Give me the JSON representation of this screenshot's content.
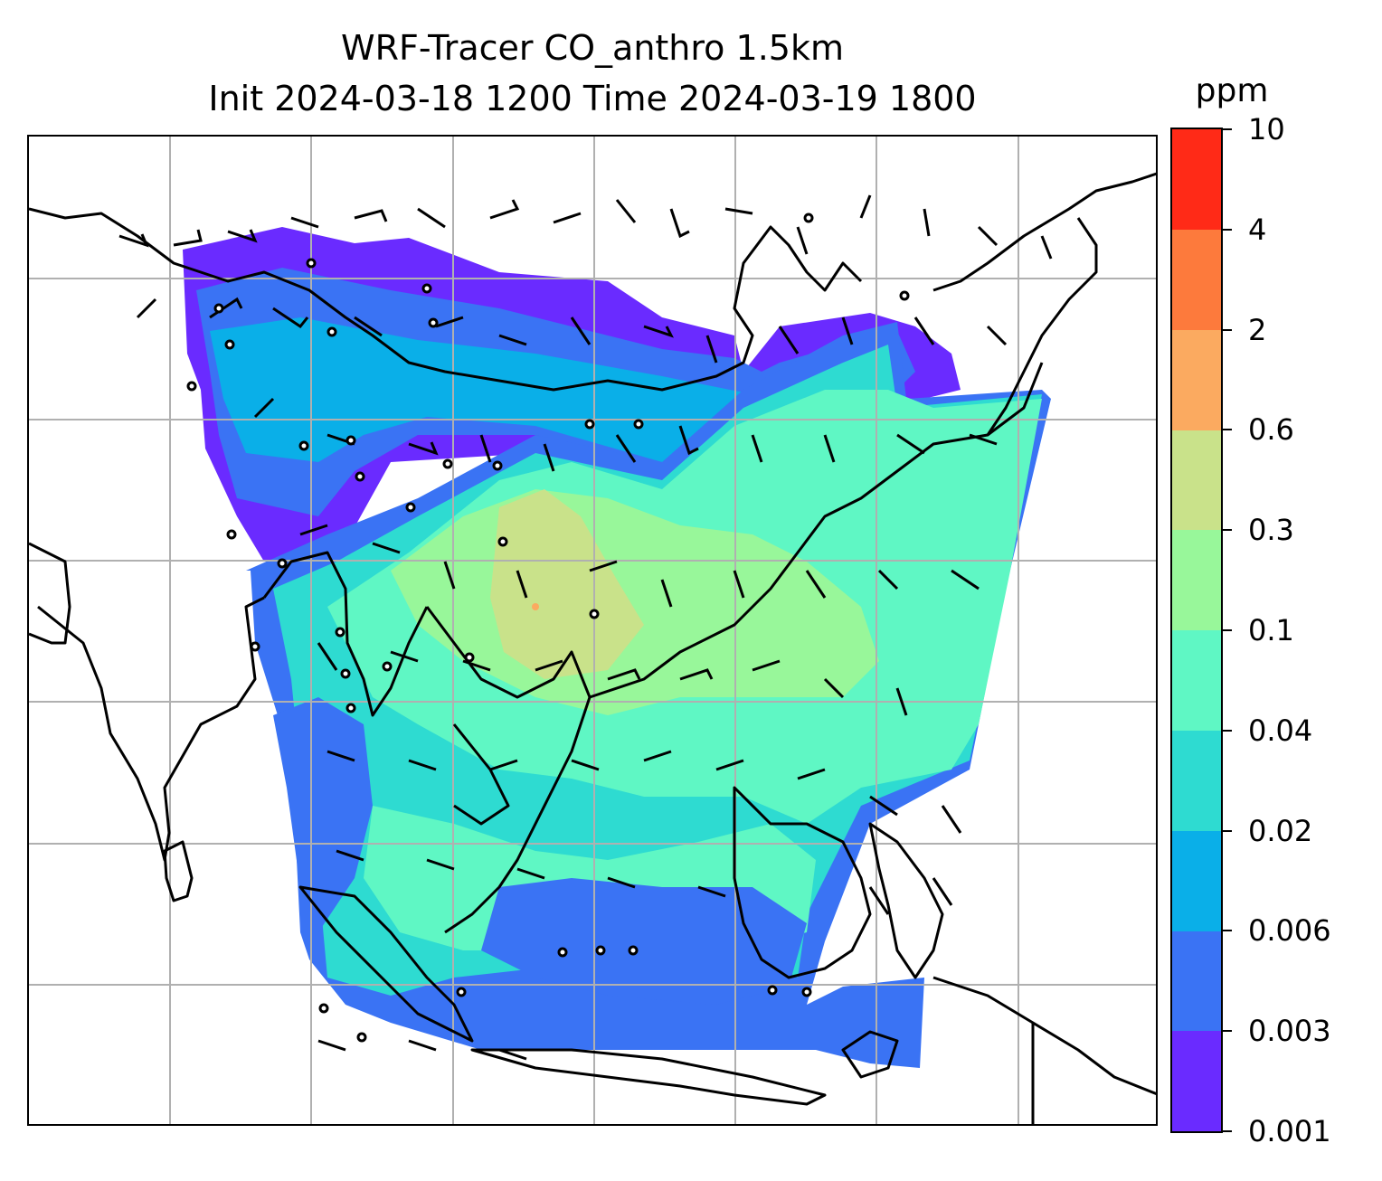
{
  "title": {
    "line1": "WRF-Tracer CO_anthro 1.5km",
    "line2": "Init 2024-03-18 1200 Time 2024-03-19 1800"
  },
  "colorbar": {
    "unit": "ppm",
    "levels": [
      "0.001",
      "0.003",
      "0.006",
      "0.02",
      "0.04",
      "0.1",
      "0.3",
      "0.6",
      "2",
      "4",
      "10"
    ],
    "colors": [
      "#6a2bff",
      "#3a73f4",
      "#0aafe8",
      "#2edbd1",
      "#5ff7c4",
      "#98f79a",
      "#c9e28a",
      "#fbaa60",
      "#fd7a3c",
      "#ff2a17"
    ]
  },
  "map": {
    "gridlines": true,
    "field": "CO_anthro concentration",
    "features": [
      "coastlines",
      "country borders",
      "wind barbs"
    ]
  },
  "colors": {
    "gridline": "#b0b0b0",
    "coastline": "#000000"
  }
}
